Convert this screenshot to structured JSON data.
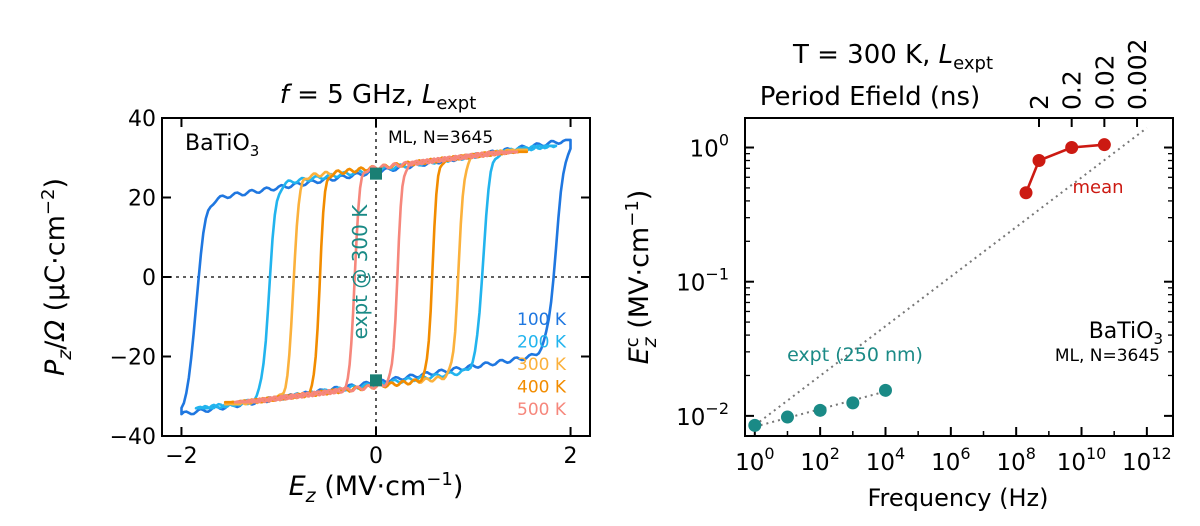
{
  "chart_data": [
    {
      "type": "line",
      "title_prefix": "f",
      "title_main": " = 5 GHz, ",
      "title_L": "L",
      "title_sub": "expt",
      "xlabel_var": "E",
      "xlabel_sub": "z",
      "xlabel_unit": " (MV·cm",
      "xlabel_exp": "−1",
      "xlabel_close": ")",
      "ylabel_P": "P",
      "ylabel_z": "z",
      "ylabel_slash": "/",
      "ylabel_omega": "Ω",
      "ylabel_unit": " (μC·cm",
      "ylabel_exp": "−2",
      "ylabel_close": ")",
      "xlim": [
        -2.2,
        2.2
      ],
      "ylim": [
        -40,
        40
      ],
      "xticks": [
        -2,
        0,
        2
      ],
      "xtick_labels": [
        "−2",
        "0",
        "2"
      ],
      "yticks": [
        40,
        20,
        0,
        -20,
        -40
      ],
      "ytick_labels": [
        "40",
        "20",
        "0",
        "−20",
        "−40"
      ],
      "material": "BaTiO",
      "material_sub": "3",
      "model_label": "ML, N=3645",
      "expt_annotation": "expt @ 300 K",
      "expt_points": [
        {
          "x": 0,
          "y": 26
        },
        {
          "x": 0,
          "y": -26
        }
      ],
      "series": [
        {
          "name": "100 K",
          "color": "#1f77e0",
          "coercive": 1.85,
          "width": 0.26,
          "pmin": -34.5,
          "pmax": 34.5,
          "emax": 2.0,
          "sat": 26.5,
          "slope": 4.0
        },
        {
          "name": "200 K",
          "color": "#22b4ee",
          "coercive": 1.1,
          "width": 0.2,
          "pmin": -33,
          "pmax": 33,
          "emax": 1.85,
          "sat": 27,
          "slope": 3.4
        },
        {
          "name": "300 K",
          "color": "#fbb13c",
          "coercive": 0.85,
          "width": 0.16,
          "pmin": -32,
          "pmax": 32,
          "emax": 1.55,
          "sat": 27.5,
          "slope": 3.0
        },
        {
          "name": "400 K",
          "color": "#f28c00",
          "coercive": 0.58,
          "width": 0.14,
          "pmin": -31.5,
          "pmax": 31.5,
          "emax": 1.55,
          "sat": 27.5,
          "slope": 3.0
        },
        {
          "name": "500 K",
          "color": "#f6877c",
          "coercive": 0.22,
          "width": 0.14,
          "pmin": -31.5,
          "pmax": 31.5,
          "emax": 1.45,
          "sat": 27.5,
          "slope": 3.0
        }
      ]
    },
    {
      "type": "scatter",
      "title_prefix": "T = 300 K, ",
      "title_L": "L",
      "title_sub": "expt",
      "top_axis_label": "Period Efield (ns)",
      "top_ticks_hz": [
        500000000.0,
        5000000000.0,
        50000000000.0,
        500000000000.0
      ],
      "top_tick_labels": [
        "2",
        "0.2",
        "0.02",
        "0.002"
      ],
      "xlabel": "Frequency (Hz)",
      "ylabel_E": "E",
      "ylabel_sup": "c",
      "ylabel_sub": "z",
      "ylabel_unit": " (MV·cm",
      "ylabel_exp": "−1",
      "ylabel_close": ")",
      "xscale": "log",
      "yscale": "log",
      "xlim_log10": [
        -0.3,
        12.8
      ],
      "ylim_log10": [
        -2.15,
        0.22
      ],
      "xtick_exponents": [
        0,
        2,
        4,
        6,
        8,
        10,
        12
      ],
      "xtick_base": "10",
      "ytick_exponents": [
        0,
        -1,
        -2
      ],
      "ml_series": {
        "name": "mean",
        "color": "#cc1a12",
        "x": [
          200000000.0,
          500000000.0,
          5000000000.0,
          50000000000.0
        ],
        "y": [
          0.46,
          0.8,
          1.0,
          1.05
        ]
      },
      "expt_series": {
        "name": "expt (250 nm)",
        "color": "#1a8a86",
        "x": [
          1,
          10,
          100,
          1000,
          10000
        ],
        "y": [
          0.0085,
          0.0098,
          0.011,
          0.0125,
          0.0155
        ]
      },
      "fit_line": {
        "x": [
          1,
          1000000000000.0
        ],
        "y": [
          0.0085,
          1.4
        ]
      },
      "expt_fit_line": {
        "x": [
          1,
          10000
        ],
        "y": [
          0.0083,
          0.0152
        ]
      },
      "material": "BaTiO",
      "material_sub": "3",
      "model_label": "ML, N=3645"
    }
  ]
}
